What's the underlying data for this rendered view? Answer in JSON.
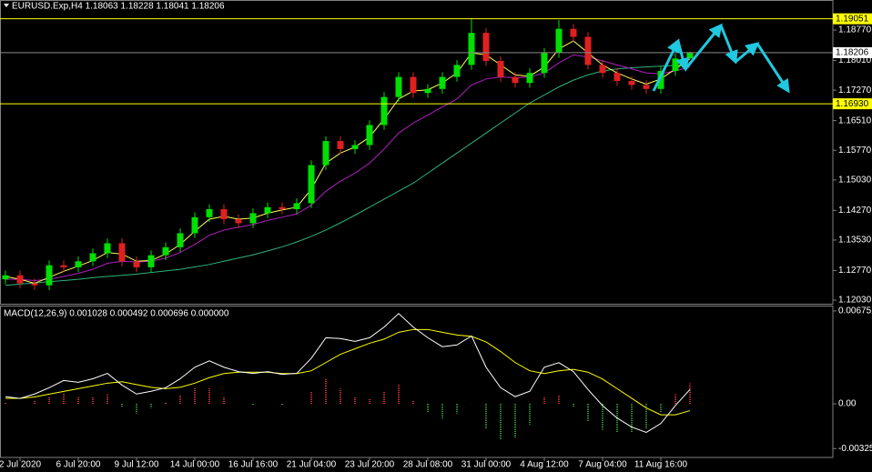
{
  "chart_data": [
    {
      "type": "candlestick",
      "title": "EURUSD.Exp,H4  1.18063 1.18228 1.18041 1.18206",
      "categories": [
        null,
        "2 Jul 2020",
        null,
        null,
        null,
        "6 Jul 20:00",
        null,
        null,
        null,
        "9 Jul 12:00",
        null,
        null,
        null,
        "14 Jul 00:00",
        null,
        null,
        null,
        "16 Jul 16:00",
        null,
        null,
        null,
        "21 Jul 04:00",
        null,
        null,
        null,
        "23 Jul 20:00",
        null,
        null,
        null,
        "28 Jul 08:00",
        null,
        null,
        null,
        "31 Jul 00:00",
        null,
        null,
        null,
        "4 Aug 12:00",
        null,
        null,
        null,
        "7 Aug 04:00",
        null,
        null,
        null,
        "11 Aug 16:00",
        null,
        null
      ],
      "open": [
        1.1255,
        1.1265,
        1.1245,
        1.124,
        1.129,
        1.1285,
        1.13,
        1.132,
        1.1345,
        1.13,
        1.1285,
        1.1315,
        1.1335,
        1.137,
        1.141,
        1.143,
        1.1405,
        1.1395,
        1.142,
        1.1435,
        1.143,
        1.1445,
        1.154,
        1.16,
        1.158,
        1.159,
        1.164,
        1.171,
        1.176,
        1.172,
        1.173,
        1.176,
        1.179,
        1.187,
        1.18,
        1.176,
        1.1745,
        1.177,
        1.182,
        1.188,
        1.186,
        1.179,
        1.177,
        1.175,
        1.174,
        1.173,
        1.1775,
        1.18063
      ],
      "high": [
        1.1277,
        1.1277,
        1.1257,
        1.1302,
        1.1302,
        1.1312,
        1.1332,
        1.1357,
        1.1357,
        1.1312,
        1.1327,
        1.1347,
        1.1382,
        1.1422,
        1.1442,
        1.1442,
        1.1417,
        1.1432,
        1.1447,
        1.1447,
        1.1457,
        1.1552,
        1.1612,
        1.1612,
        1.1602,
        1.1652,
        1.1722,
        1.1772,
        1.1772,
        1.1742,
        1.1772,
        1.1802,
        1.1905,
        1.1882,
        1.1812,
        1.1772,
        1.1782,
        1.1832,
        1.1902,
        1.1892,
        1.1872,
        1.1802,
        1.1782,
        1.1762,
        1.1752,
        1.1787,
        1.1818,
        1.18228
      ],
      "low": [
        1.1243,
        1.1233,
        1.1228,
        1.1228,
        1.1273,
        1.1273,
        1.1288,
        1.1308,
        1.1288,
        1.1273,
        1.1273,
        1.1303,
        1.1323,
        1.1358,
        1.1398,
        1.1393,
        1.1383,
        1.1383,
        1.1408,
        1.1418,
        1.1418,
        1.1433,
        1.1528,
        1.1568,
        1.1568,
        1.1578,
        1.1628,
        1.1698,
        1.1708,
        1.1708,
        1.1718,
        1.1748,
        1.1778,
        1.1788,
        1.1748,
        1.1733,
        1.1733,
        1.1758,
        1.1808,
        1.1848,
        1.1778,
        1.1758,
        1.1738,
        1.1728,
        1.1718,
        1.1718,
        1.1763,
        1.18041
      ],
      "close": [
        1.1265,
        1.1245,
        1.124,
        1.129,
        1.1285,
        1.13,
        1.132,
        1.1345,
        1.13,
        1.1285,
        1.1315,
        1.1335,
        1.137,
        1.141,
        1.143,
        1.1405,
        1.1395,
        1.142,
        1.1435,
        1.143,
        1.1445,
        1.154,
        1.16,
        1.158,
        1.159,
        1.164,
        1.171,
        1.176,
        1.172,
        1.173,
        1.176,
        1.179,
        1.187,
        1.18,
        1.176,
        1.1745,
        1.177,
        1.182,
        1.188,
        1.186,
        1.179,
        1.177,
        1.175,
        1.174,
        1.173,
        1.1775,
        1.1806,
        1.18206
      ],
      "up_color": "#00e000",
      "down_color": "#e02020",
      "lines": [
        {
          "color": "#2fb37a",
          "values": [
            1.124,
            1.1243,
            1.1246,
            1.1249,
            1.1252,
            1.1255,
            1.1259,
            1.1262,
            1.1265,
            1.1268,
            1.1272,
            1.1276,
            1.128,
            1.1286,
            1.1292,
            1.13,
            1.1308,
            1.1316,
            1.1326,
            1.1336,
            1.1348,
            1.1362,
            1.1378,
            1.1396,
            1.1415,
            1.1435,
            1.1455,
            1.1475,
            1.1495,
            1.152,
            1.1545,
            1.157,
            1.1595,
            1.162,
            1.1645,
            1.167,
            1.1695,
            1.1715,
            1.1735,
            1.1752,
            1.1765,
            1.1775,
            1.178,
            1.1783,
            1.1785,
            1.1787,
            1.1789,
            1.179
          ]
        },
        {
          "color": "#b020c0",
          "values": [
            1.1255,
            1.1255,
            1.1252,
            1.1255,
            1.1262,
            1.127,
            1.128,
            1.1295,
            1.13,
            1.1298,
            1.13,
            1.1308,
            1.1322,
            1.1342,
            1.1365,
            1.1378,
            1.1385,
            1.1392,
            1.1402,
            1.141,
            1.1418,
            1.144,
            1.1475,
            1.15,
            1.152,
            1.1545,
            1.158,
            1.162,
            1.1645,
            1.1665,
            1.1685,
            1.1705,
            1.174,
            1.1755,
            1.176,
            1.1758,
            1.176,
            1.177,
            1.1795,
            1.1815,
            1.181,
            1.18,
            1.179,
            1.178,
            1.177,
            1.1768,
            1.1775,
            1.1785
          ]
        },
        {
          "color": "#ffff60",
          "values": [
            1.1262,
            1.1255,
            1.1245,
            1.126,
            1.1275,
            1.1288,
            1.1302,
            1.1322,
            1.1318,
            1.13,
            1.1302,
            1.1318,
            1.1342,
            1.1375,
            1.1405,
            1.1412,
            1.1405,
            1.1408,
            1.142,
            1.1428,
            1.1435,
            1.148,
            1.1545,
            1.157,
            1.1585,
            1.161,
            1.1655,
            1.1705,
            1.1725,
            1.1728,
            1.1745,
            1.177,
            1.182,
            1.1815,
            1.179,
            1.1765,
            1.1762,
            1.1785,
            1.183,
            1.185,
            1.182,
            1.179,
            1.177,
            1.1755,
            1.1742,
            1.1755,
            1.178,
            1.1805
          ]
        }
      ],
      "ylim": [
        1.1194,
        1.1952
      ],
      "yticks": [
        {
          "value": 1.1877,
          "label": "1.18770"
        },
        {
          "value": 1.1801,
          "label": "1.18010"
        },
        {
          "value": 1.1727,
          "label": "1.17270"
        },
        {
          "value": 1.1651,
          "label": "1.16510"
        },
        {
          "value": 1.1577,
          "label": "1.15770"
        },
        {
          "value": 1.1503,
          "label": "1.15030"
        },
        {
          "value": 1.1427,
          "label": "1.14270"
        },
        {
          "value": 1.1353,
          "label": "1.13530"
        },
        {
          "value": 1.1277,
          "label": "1.12770"
        },
        {
          "value": 1.1203,
          "label": "1.12030"
        }
      ],
      "levels": [
        {
          "value": 1.19051,
          "color": "#ffff00",
          "label_color": "#000000"
        },
        {
          "value": 1.1693,
          "label": "1.16930",
          "color": "#ffff00",
          "label_color": "#000000"
        },
        {
          "value": 1.18206,
          "color": "#8a8a8a",
          "box_color": "#ffffff",
          "label_color": "#000000"
        }
      ]
    },
    {
      "type": "macd",
      "title": "MACD(12,26,9) 0.001028 0.000492 0.000696 0.000000",
      "macd": {
        "color": "#ffffff",
        "values": [
          0.00052,
          0.00039,
          0.00071,
          0.00117,
          0.00169,
          0.00156,
          0.00182,
          0.00221,
          0.00136,
          0.00071,
          0.00091,
          0.00117,
          0.00182,
          0.00266,
          0.00312,
          0.00266,
          0.00234,
          0.00221,
          0.00234,
          0.00214,
          0.00221,
          0.00331,
          0.0048,
          0.00474,
          0.00454,
          0.0048,
          0.00558,
          0.00656,
          0.00558,
          0.0048,
          0.00415,
          0.00428,
          0.00493,
          0.00266,
          0.00117,
          0.00052,
          0.00091,
          0.00266,
          0.00299,
          0.00234,
          0.00104,
          -0.00013,
          -0.00104,
          -0.00169,
          -0.00208,
          -0.00143,
          -0.00013,
          0.00104
        ]
      },
      "signal": {
        "color": "#ffff00",
        "values": [
          0.0004,
          0.0004,
          0.0005,
          0.0007,
          0.0009,
          0.0011,
          0.0013,
          0.0015,
          0.0016,
          0.0014,
          0.0012,
          0.0011,
          0.0012,
          0.0015,
          0.0019,
          0.0022,
          0.0023,
          0.0023,
          0.0023,
          0.0022,
          0.0022,
          0.0024,
          0.003,
          0.0036,
          0.004,
          0.0044,
          0.0047,
          0.0052,
          0.0054,
          0.0054,
          0.0052,
          0.005,
          0.0049,
          0.0045,
          0.0038,
          0.003,
          0.0024,
          0.0022,
          0.0024,
          0.0025,
          0.0023,
          0.0018,
          0.0011,
          0.0004,
          -0.0003,
          -0.0008,
          -0.0008,
          -0.0005
        ]
      },
      "histogram": {
        "up_color": "#d03030",
        "down_color": "#30a030",
        "values": [
          0.0001,
          0,
          0.0002,
          0.0005,
          0.0008,
          0.0005,
          0.0005,
          0.0007,
          -0.0002,
          -0.0007,
          -0.0003,
          0.0001,
          0.0006,
          0.0012,
          0.0012,
          0.0005,
          0,
          -0.0001,
          0,
          -0.0001,
          0,
          0.0009,
          0.0018,
          0.0011,
          0.0005,
          0.0004,
          0.0009,
          0.0014,
          0.0002,
          -0.0006,
          -0.0011,
          -0.0007,
          0,
          -0.0018,
          -0.0026,
          -0.0025,
          -0.0015,
          0.0005,
          0.0006,
          -0.0002,
          -0.0013,
          -0.0019,
          -0.0021,
          -0.0021,
          -0.0018,
          -0.0006,
          0.0007,
          0.0015
        ]
      },
      "ylim": [
        -0.0039,
        0.00714
      ],
      "yticks": [
        0.006751,
        {
          "value": 0,
          "label": "0.00"
        },
        -0.003256
      ]
    }
  ]
}
